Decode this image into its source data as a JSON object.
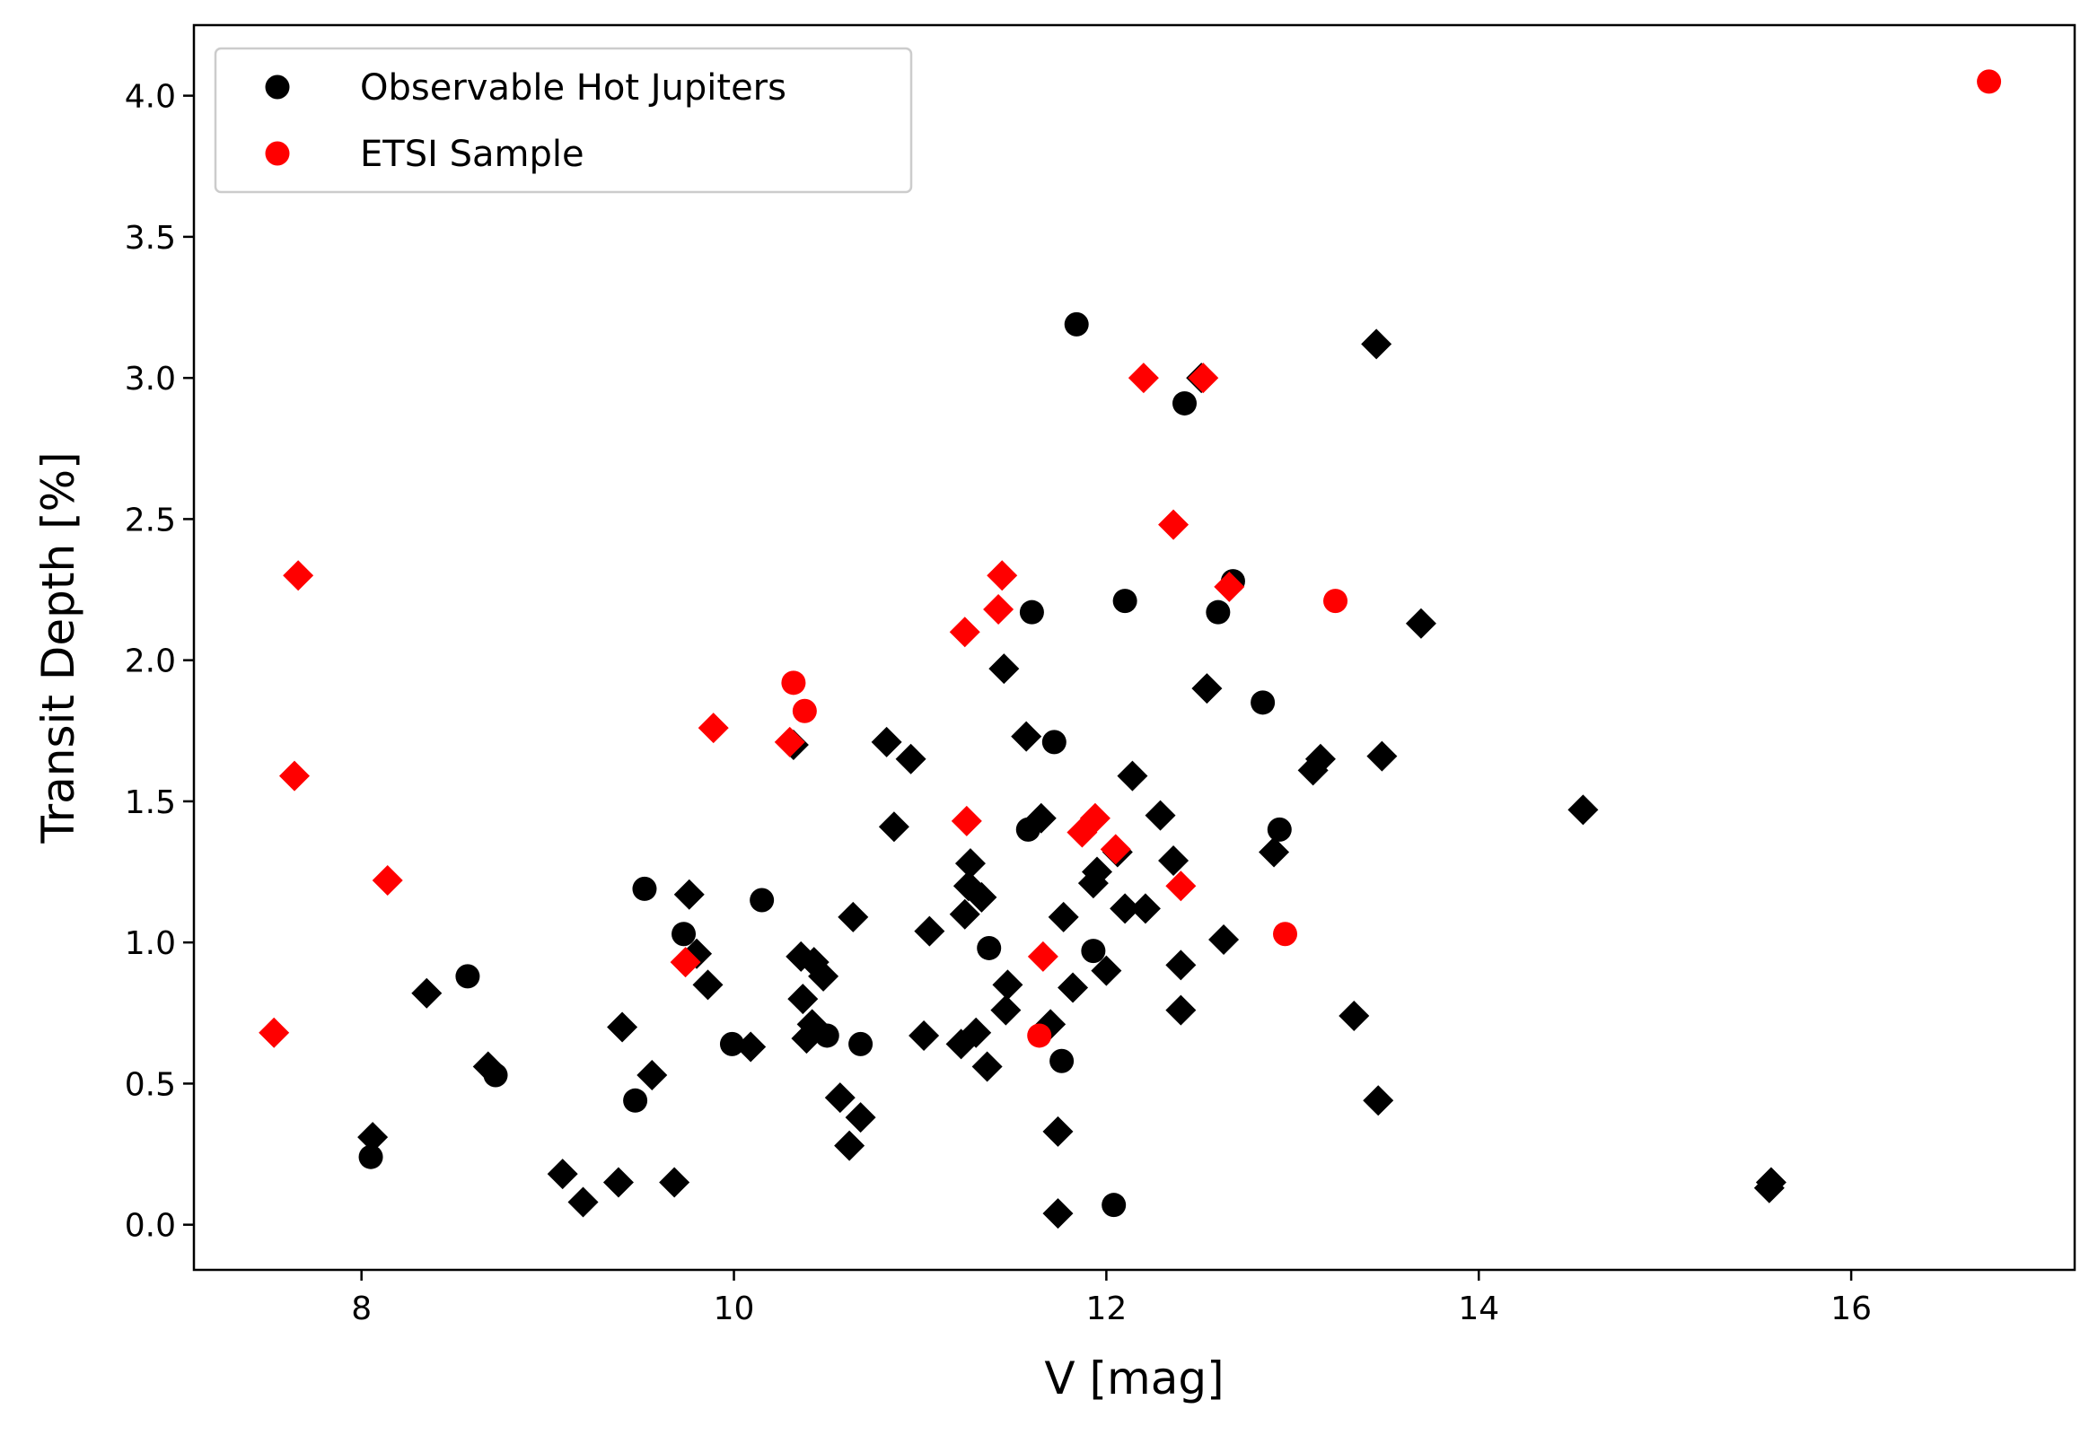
{
  "chart_data": {
    "type": "scatter",
    "title": "",
    "xlabel": "V [mag]",
    "ylabel": "Transit Depth [%]",
    "xlim": [
      7.1,
      17.2
    ],
    "ylim": [
      -0.16,
      4.25
    ],
    "xticks": [
      8,
      10,
      12,
      14,
      16
    ],
    "xtick_labels": [
      "8",
      "10",
      "12",
      "14",
      "16"
    ],
    "yticks": [
      0.0,
      0.5,
      1.0,
      1.5,
      2.0,
      2.5,
      3.0,
      3.5,
      4.0
    ],
    "ytick_labels": [
      "0.0",
      "0.5",
      "1.0",
      "1.5",
      "2.0",
      "2.5",
      "3.0",
      "3.5",
      "4.0"
    ],
    "grid": false,
    "legend": {
      "placement": "top-left",
      "entries": [
        {
          "label": "Observable Hot Jupiters",
          "color": "#000000",
          "marker": "circle"
        },
        {
          "label": "ETSI Sample",
          "color": "#ff0000",
          "marker": "circle"
        }
      ]
    },
    "series": [
      {
        "name": "Observable Hot Jupiters",
        "color": "#000000",
        "marker": "circle",
        "points": [
          [
            8.05,
            0.24
          ],
          [
            8.57,
            0.88
          ],
          [
            8.72,
            0.53
          ],
          [
            9.47,
            0.44
          ],
          [
            9.52,
            1.19
          ],
          [
            9.73,
            1.03
          ],
          [
            9.99,
            0.64
          ],
          [
            10.15,
            1.15
          ],
          [
            10.5,
            0.67
          ],
          [
            10.68,
            0.64
          ],
          [
            11.37,
            0.98
          ],
          [
            11.58,
            1.4
          ],
          [
            11.6,
            2.17
          ],
          [
            11.72,
            1.71
          ],
          [
            11.76,
            0.58
          ],
          [
            11.84,
            3.19
          ],
          [
            11.93,
            0.97
          ],
          [
            12.04,
            0.07
          ],
          [
            12.1,
            2.21
          ],
          [
            12.42,
            2.91
          ],
          [
            12.6,
            2.17
          ],
          [
            12.68,
            2.28
          ],
          [
            12.84,
            1.85
          ],
          [
            12.93,
            1.4
          ]
        ]
      },
      {
        "name": "",
        "color": "#000000",
        "marker": "diamond",
        "points": [
          [
            8.06,
            0.31
          ],
          [
            8.35,
            0.82
          ],
          [
            8.68,
            0.56
          ],
          [
            9.08,
            0.18
          ],
          [
            9.19,
            0.08
          ],
          [
            9.38,
            0.15
          ],
          [
            9.4,
            0.7
          ],
          [
            9.56,
            0.53
          ],
          [
            9.68,
            0.15
          ],
          [
            9.76,
            1.17
          ],
          [
            9.8,
            0.96
          ],
          [
            9.86,
            0.85
          ],
          [
            10.09,
            0.63
          ],
          [
            10.32,
            1.7
          ],
          [
            10.36,
            0.95
          ],
          [
            10.37,
            0.8
          ],
          [
            10.39,
            0.66
          ],
          [
            10.42,
            0.71
          ],
          [
            10.43,
            0.93
          ],
          [
            10.48,
            0.88
          ],
          [
            10.57,
            0.45
          ],
          [
            10.62,
            0.28
          ],
          [
            10.64,
            1.09
          ],
          [
            10.68,
            0.38
          ],
          [
            10.82,
            1.71
          ],
          [
            10.86,
            1.41
          ],
          [
            10.95,
            1.65
          ],
          [
            11.02,
            0.67
          ],
          [
            11.05,
            1.04
          ],
          [
            11.22,
            0.64
          ],
          [
            11.24,
            1.1
          ],
          [
            11.26,
            1.2
          ],
          [
            11.27,
            1.28
          ],
          [
            11.3,
            0.68
          ],
          [
            11.33,
            1.16
          ],
          [
            11.36,
            0.56
          ],
          [
            11.45,
            1.97
          ],
          [
            11.46,
            0.76
          ],
          [
            11.47,
            0.85
          ],
          [
            11.57,
            1.73
          ],
          [
            11.65,
            1.44
          ],
          [
            11.7,
            0.71
          ],
          [
            11.74,
            0.33
          ],
          [
            11.74,
            0.04
          ],
          [
            11.77,
            1.09
          ],
          [
            11.82,
            0.84
          ],
          [
            11.93,
            1.21
          ],
          [
            11.95,
            1.25
          ],
          [
            12.0,
            0.9
          ],
          [
            12.06,
            1.32
          ],
          [
            12.1,
            1.12
          ],
          [
            12.14,
            1.59
          ],
          [
            12.21,
            1.12
          ],
          [
            12.29,
            1.45
          ],
          [
            12.36,
            1.29
          ],
          [
            12.4,
            0.92
          ],
          [
            12.4,
            0.76
          ],
          [
            12.51,
            3.0
          ],
          [
            12.54,
            1.9
          ],
          [
            12.63,
            1.01
          ],
          [
            12.9,
            1.32
          ],
          [
            13.11,
            1.61
          ],
          [
            13.15,
            1.65
          ],
          [
            13.33,
            0.74
          ],
          [
            13.45,
            3.12
          ],
          [
            13.46,
            0.44
          ],
          [
            13.48,
            1.66
          ],
          [
            13.69,
            2.13
          ],
          [
            14.56,
            1.47
          ],
          [
            15.56,
            0.13
          ],
          [
            15.57,
            0.15
          ]
        ]
      },
      {
        "name": "ETSI Sample",
        "color": "#ff0000",
        "marker": "circle",
        "points": [
          [
            10.32,
            1.92
          ],
          [
            10.38,
            1.82
          ],
          [
            11.64,
            0.67
          ],
          [
            12.96,
            1.03
          ],
          [
            13.23,
            2.21
          ],
          [
            16.74,
            4.05
          ]
        ]
      },
      {
        "name": "",
        "color": "#ff0000",
        "marker": "diamond",
        "points": [
          [
            7.53,
            0.68
          ],
          [
            7.64,
            1.59
          ],
          [
            7.66,
            2.3
          ],
          [
            8.14,
            1.22
          ],
          [
            9.74,
            0.93
          ],
          [
            9.89,
            1.76
          ],
          [
            10.3,
            1.71
          ],
          [
            11.24,
            2.1
          ],
          [
            11.25,
            1.43
          ],
          [
            11.42,
            2.18
          ],
          [
            11.44,
            2.3
          ],
          [
            11.66,
            0.95
          ],
          [
            11.87,
            1.39
          ],
          [
            11.94,
            1.44
          ],
          [
            12.05,
            1.33
          ],
          [
            12.2,
            3.0
          ],
          [
            12.36,
            2.48
          ],
          [
            12.4,
            1.2
          ],
          [
            12.52,
            3.0
          ],
          [
            12.66,
            2.26
          ]
        ]
      }
    ]
  }
}
